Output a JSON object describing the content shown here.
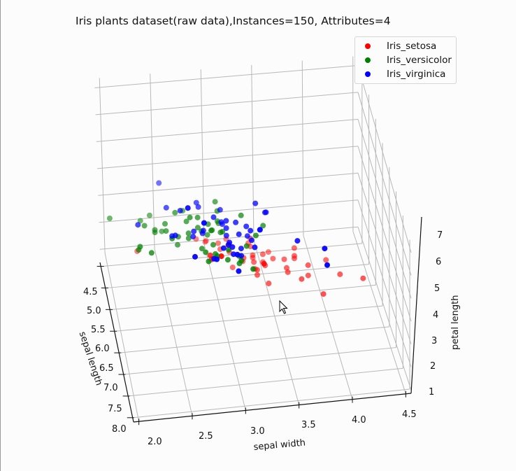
{
  "chart_data": {
    "type": "scatter",
    "projection": "3d",
    "title": "Iris plants dataset(raw data),Instances=150, Attributes=4",
    "xlabel": "sepal length",
    "ylabel": "sepal width",
    "zlabel": "petal length",
    "x_ticks": [
      "4.5",
      "5.0",
      "5.5",
      "6.0",
      "6.5",
      "7.0",
      "7.5",
      "8.0"
    ],
    "y_ticks": [
      "2.0",
      "2.5",
      "3.0",
      "3.5",
      "4.0",
      "4.5"
    ],
    "z_ticks": [
      "1",
      "2",
      "3",
      "4",
      "5",
      "6",
      "7"
    ],
    "xlim": [
      4.3,
      7.9
    ],
    "ylim": [
      2.0,
      4.4
    ],
    "zlim": [
      1.0,
      6.9
    ],
    "grid": true,
    "legend_position": "upper right",
    "legend": [
      {
        "label": "Iris_setosa",
        "color": "#ff0000"
      },
      {
        "label": "Iris_versicolor",
        "color": "#008000"
      },
      {
        "label": "Iris_virginica",
        "color": "#0000ff"
      }
    ],
    "series": [
      {
        "name": "Iris_setosa",
        "color": "#ff0000",
        "points_xyz": [
          [
            5.1,
            3.5,
            1.4
          ],
          [
            4.9,
            3.0,
            1.4
          ],
          [
            4.7,
            3.2,
            1.3
          ],
          [
            4.6,
            3.1,
            1.5
          ],
          [
            5.0,
            3.6,
            1.4
          ],
          [
            5.4,
            3.9,
            1.7
          ],
          [
            4.6,
            3.4,
            1.4
          ],
          [
            5.0,
            3.4,
            1.5
          ],
          [
            4.4,
            2.9,
            1.4
          ],
          [
            4.9,
            3.1,
            1.5
          ],
          [
            5.4,
            3.7,
            1.5
          ],
          [
            4.8,
            3.4,
            1.6
          ],
          [
            4.8,
            3.0,
            1.4
          ],
          [
            4.3,
            3.0,
            1.1
          ],
          [
            5.8,
            4.0,
            1.2
          ],
          [
            5.7,
            4.4,
            1.5
          ],
          [
            5.4,
            3.9,
            1.3
          ],
          [
            5.1,
            3.5,
            1.4
          ],
          [
            5.7,
            3.8,
            1.7
          ],
          [
            5.1,
            3.8,
            1.5
          ],
          [
            5.4,
            3.4,
            1.7
          ],
          [
            5.1,
            3.7,
            1.5
          ],
          [
            4.6,
            3.6,
            1.0
          ],
          [
            5.1,
            3.3,
            1.7
          ],
          [
            4.8,
            3.4,
            1.9
          ],
          [
            5.0,
            3.0,
            1.6
          ],
          [
            5.0,
            3.4,
            1.6
          ],
          [
            5.2,
            3.5,
            1.5
          ],
          [
            5.2,
            3.4,
            1.4
          ],
          [
            4.7,
            3.2,
            1.6
          ],
          [
            4.8,
            3.1,
            1.6
          ],
          [
            5.4,
            3.4,
            1.5
          ],
          [
            5.2,
            4.1,
            1.5
          ],
          [
            5.5,
            4.2,
            1.4
          ],
          [
            4.9,
            3.1,
            1.5
          ],
          [
            5.0,
            3.2,
            1.2
          ],
          [
            5.5,
            3.5,
            1.3
          ],
          [
            4.9,
            3.1,
            1.5
          ],
          [
            4.4,
            3.0,
            1.3
          ],
          [
            5.1,
            3.4,
            1.5
          ],
          [
            5.0,
            3.5,
            1.3
          ],
          [
            4.5,
            2.3,
            1.3
          ],
          [
            4.4,
            3.2,
            1.3
          ],
          [
            5.0,
            3.5,
            1.6
          ],
          [
            5.1,
            3.8,
            1.9
          ],
          [
            4.8,
            3.0,
            1.4
          ],
          [
            5.1,
            3.8,
            1.6
          ],
          [
            4.6,
            3.2,
            1.4
          ],
          [
            5.3,
            3.7,
            1.5
          ],
          [
            5.0,
            3.3,
            1.4
          ]
        ]
      },
      {
        "name": "Iris_versicolor",
        "color": "#008000",
        "points_xyz": [
          [
            7.0,
            3.2,
            4.7
          ],
          [
            6.4,
            3.2,
            4.5
          ],
          [
            6.9,
            3.1,
            4.9
          ],
          [
            5.5,
            2.3,
            4.0
          ],
          [
            6.5,
            2.8,
            4.6
          ],
          [
            5.7,
            2.8,
            4.5
          ],
          [
            6.3,
            3.3,
            4.7
          ],
          [
            4.9,
            2.4,
            3.3
          ],
          [
            6.6,
            2.9,
            4.6
          ],
          [
            5.2,
            2.7,
            3.9
          ],
          [
            5.0,
            2.0,
            3.5
          ],
          [
            5.9,
            3.0,
            4.2
          ],
          [
            6.0,
            2.2,
            4.0
          ],
          [
            6.1,
            2.9,
            4.7
          ],
          [
            5.6,
            2.9,
            3.6
          ],
          [
            6.7,
            3.1,
            4.4
          ],
          [
            5.6,
            3.0,
            4.5
          ],
          [
            5.8,
            2.7,
            4.1
          ],
          [
            6.2,
            2.2,
            4.5
          ],
          [
            5.6,
            2.5,
            3.9
          ],
          [
            5.9,
            3.2,
            4.8
          ],
          [
            6.1,
            2.8,
            4.0
          ],
          [
            6.3,
            2.5,
            4.9
          ],
          [
            6.1,
            2.8,
            4.7
          ],
          [
            6.4,
            2.9,
            4.3
          ],
          [
            6.6,
            3.0,
            4.4
          ],
          [
            6.8,
            2.8,
            4.8
          ],
          [
            6.7,
            3.0,
            5.0
          ],
          [
            6.0,
            2.9,
            4.5
          ],
          [
            5.7,
            2.6,
            3.5
          ],
          [
            5.5,
            2.4,
            3.8
          ],
          [
            5.5,
            2.4,
            3.7
          ],
          [
            5.8,
            2.7,
            3.9
          ],
          [
            6.0,
            2.7,
            5.1
          ],
          [
            5.4,
            3.0,
            4.5
          ],
          [
            6.0,
            3.4,
            4.5
          ],
          [
            6.7,
            3.1,
            4.7
          ],
          [
            6.3,
            2.3,
            4.4
          ],
          [
            5.6,
            3.0,
            4.1
          ],
          [
            5.5,
            2.5,
            4.0
          ],
          [
            5.5,
            2.6,
            4.4
          ],
          [
            6.1,
            3.0,
            4.6
          ],
          [
            5.8,
            2.6,
            4.0
          ],
          [
            5.0,
            2.3,
            3.3
          ],
          [
            5.6,
            2.7,
            4.2
          ],
          [
            5.7,
            3.0,
            4.2
          ],
          [
            5.7,
            2.9,
            4.2
          ],
          [
            6.2,
            2.9,
            4.3
          ],
          [
            5.1,
            2.5,
            3.0
          ],
          [
            5.7,
            2.8,
            4.1
          ]
        ]
      },
      {
        "name": "Iris_virginica",
        "color": "#0000ff",
        "points_xyz": [
          [
            6.3,
            3.3,
            6.0
          ],
          [
            5.8,
            2.7,
            5.1
          ],
          [
            7.1,
            3.0,
            5.9
          ],
          [
            6.3,
            2.9,
            5.6
          ],
          [
            6.5,
            3.0,
            5.8
          ],
          [
            7.6,
            3.0,
            6.6
          ],
          [
            4.9,
            2.5,
            4.5
          ],
          [
            7.3,
            2.9,
            6.3
          ],
          [
            6.7,
            2.5,
            5.8
          ],
          [
            7.2,
            3.6,
            6.1
          ],
          [
            6.5,
            3.2,
            5.1
          ],
          [
            6.4,
            2.7,
            5.3
          ],
          [
            6.8,
            3.0,
            5.5
          ],
          [
            5.7,
            2.5,
            5.0
          ],
          [
            5.8,
            2.8,
            5.1
          ],
          [
            6.4,
            3.2,
            5.3
          ],
          [
            6.5,
            3.0,
            5.5
          ],
          [
            7.7,
            3.8,
            6.7
          ],
          [
            7.7,
            2.6,
            6.9
          ],
          [
            6.0,
            2.2,
            5.0
          ],
          [
            6.9,
            3.2,
            5.7
          ],
          [
            5.6,
            2.8,
            4.9
          ],
          [
            7.7,
            2.8,
            6.7
          ],
          [
            6.3,
            2.7,
            4.9
          ],
          [
            6.7,
            3.3,
            5.7
          ],
          [
            7.2,
            3.2,
            6.0
          ],
          [
            6.2,
            2.8,
            4.8
          ],
          [
            6.1,
            3.0,
            4.9
          ],
          [
            6.4,
            2.8,
            5.6
          ],
          [
            7.2,
            3.0,
            5.8
          ],
          [
            7.4,
            2.8,
            6.1
          ],
          [
            7.9,
            3.8,
            6.4
          ],
          [
            6.4,
            2.8,
            5.6
          ],
          [
            6.3,
            2.8,
            5.1
          ],
          [
            6.1,
            2.6,
            5.6
          ],
          [
            7.7,
            3.0,
            6.1
          ],
          [
            6.3,
            3.4,
            5.6
          ],
          [
            6.4,
            3.1,
            5.5
          ],
          [
            6.0,
            3.0,
            4.8
          ],
          [
            6.9,
            3.1,
            5.4
          ],
          [
            6.7,
            3.1,
            5.6
          ],
          [
            6.9,
            3.1,
            5.1
          ],
          [
            5.8,
            2.7,
            5.1
          ],
          [
            6.8,
            3.2,
            5.9
          ],
          [
            6.7,
            3.3,
            5.7
          ],
          [
            6.7,
            3.0,
            5.2
          ],
          [
            6.3,
            2.5,
            5.0
          ],
          [
            6.5,
            3.0,
            5.2
          ],
          [
            6.2,
            3.4,
            5.4
          ],
          [
            5.9,
            3.0,
            5.1
          ]
        ]
      }
    ]
  },
  "ui": {
    "cursor": "arrow-pointer"
  }
}
